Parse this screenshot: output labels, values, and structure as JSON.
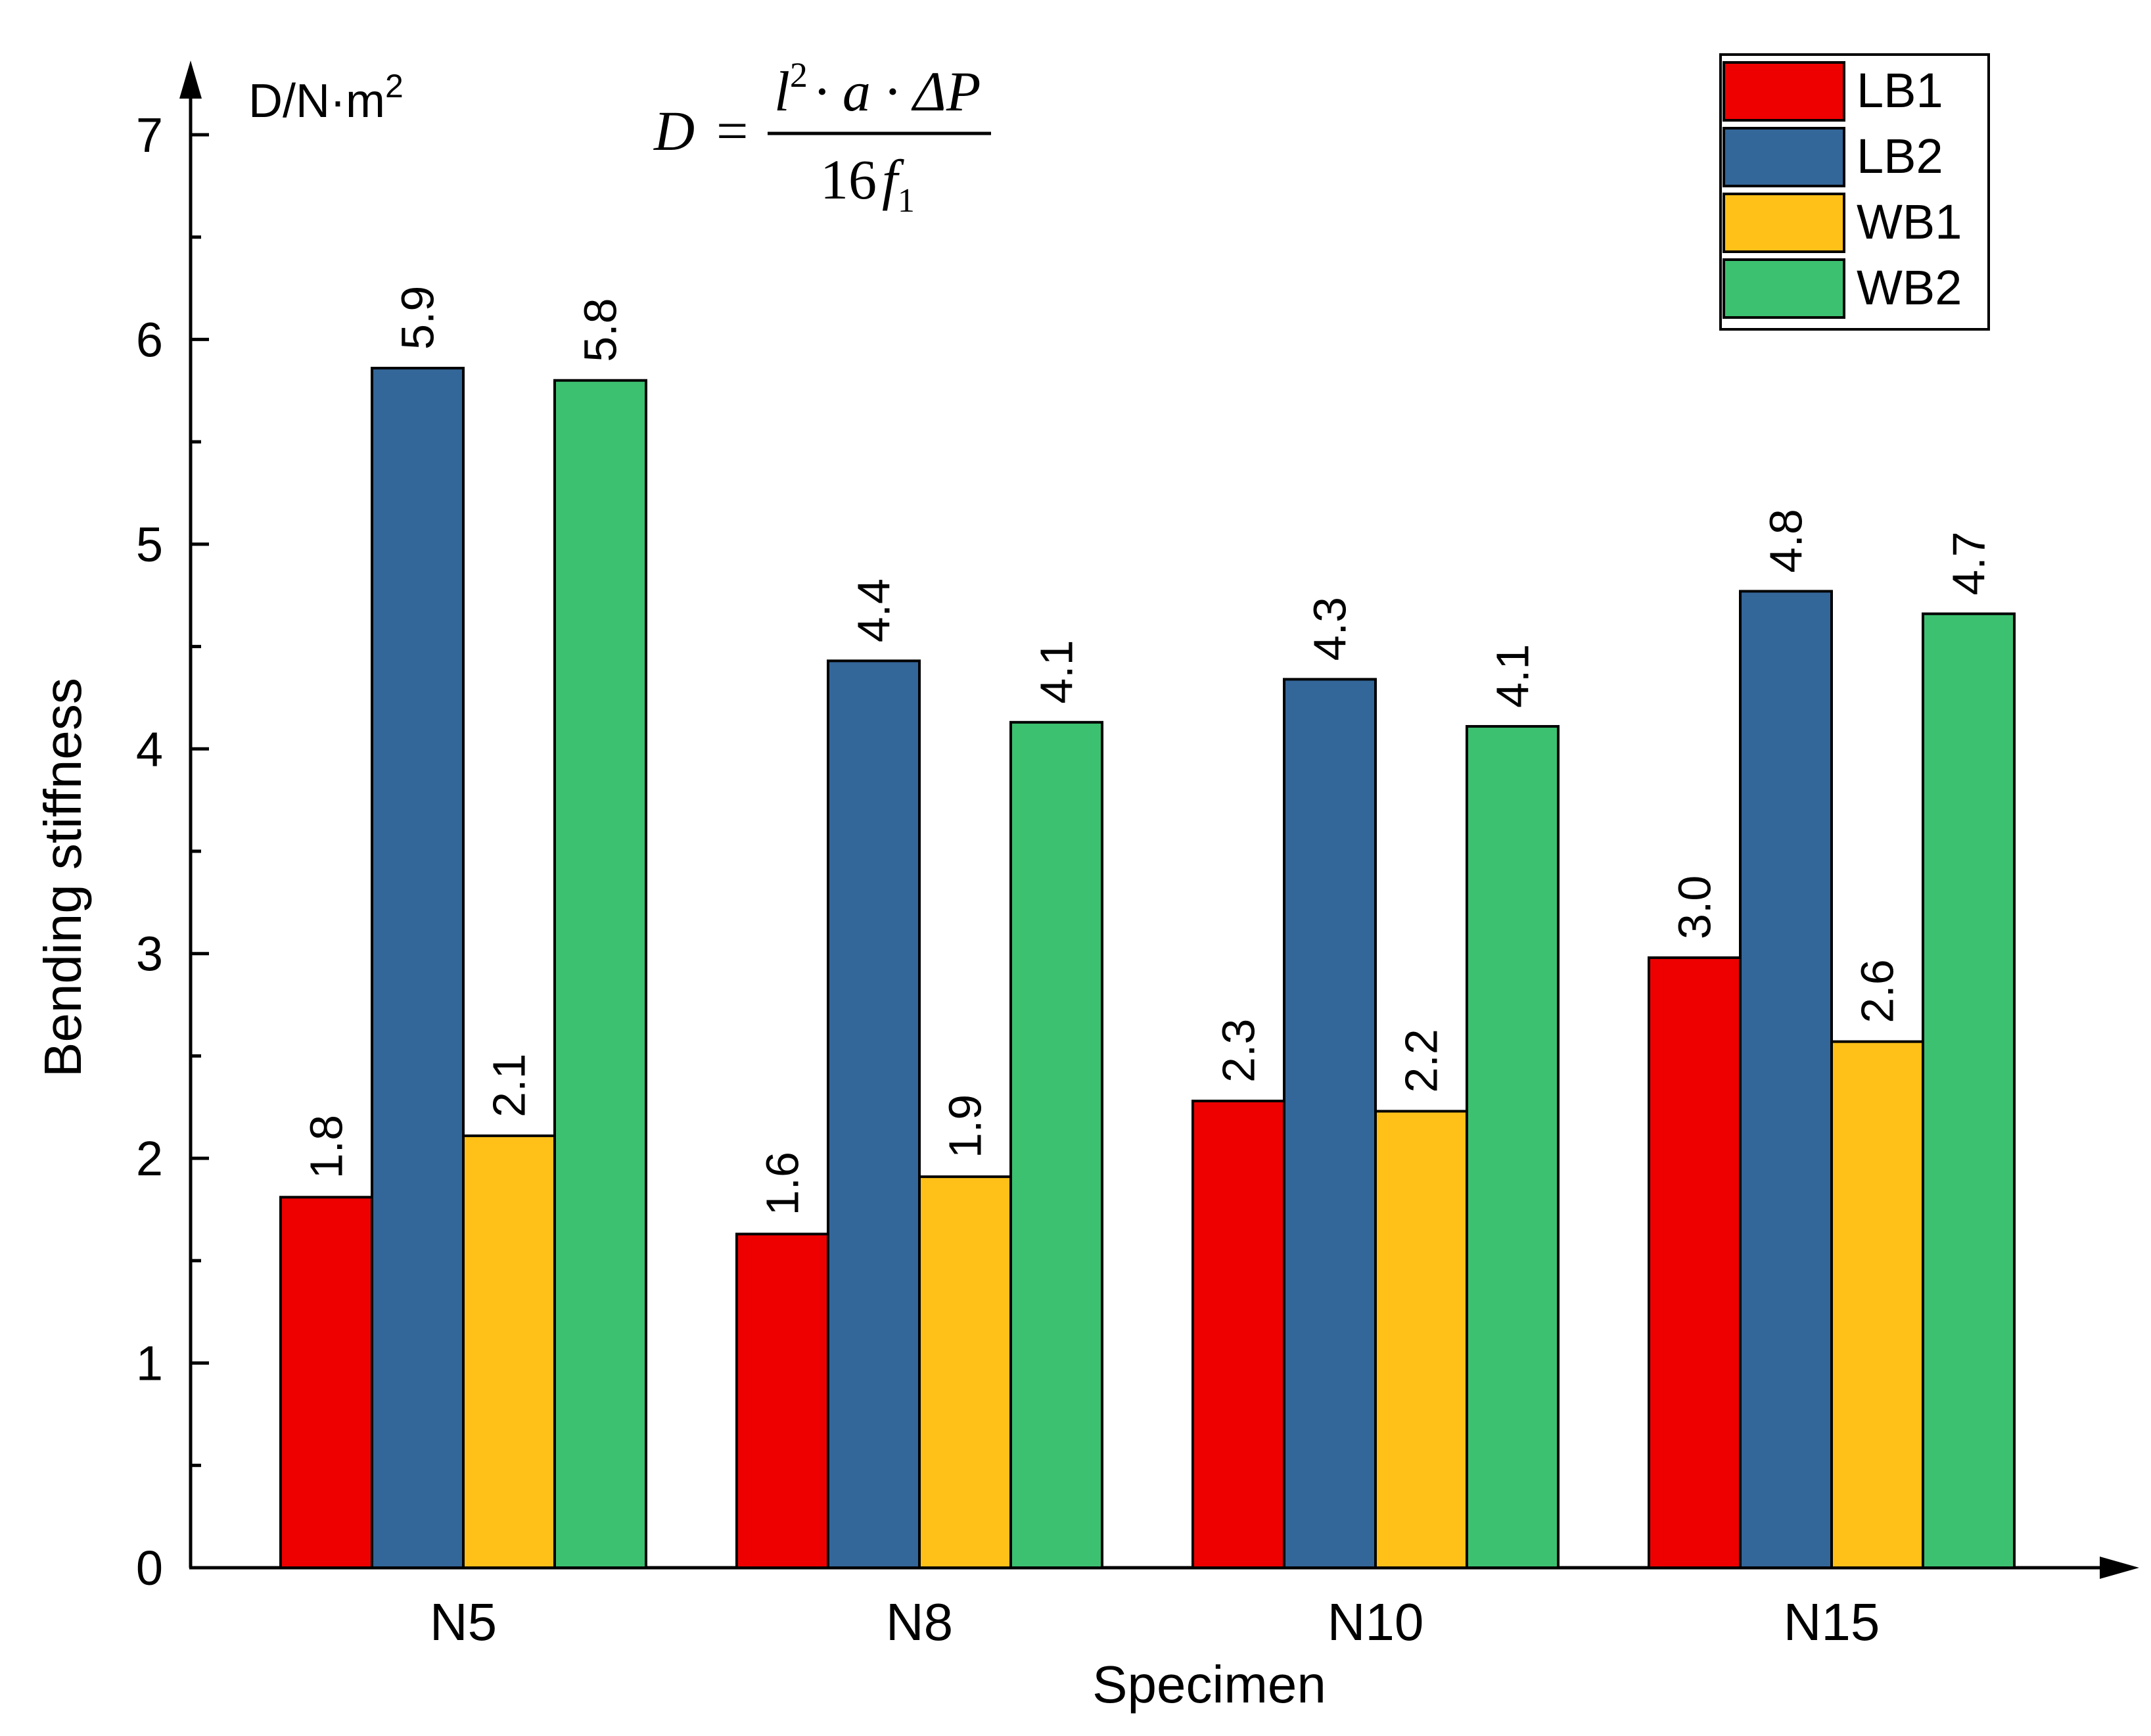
{
  "chart_data": {
    "type": "bar",
    "title": "",
    "xlabel": "Specimen",
    "ylabel": "Bending stiffness",
    "unit_label": "D/N·m",
    "unit_exponent": "2",
    "formula": {
      "lhs": "D",
      "equals": "=",
      "numerator_l": "l",
      "numerator_l_exp": "2",
      "numerator_rest": "· a · ΔP",
      "denominator": "16",
      "denominator_f": "f",
      "denominator_sub": "1"
    },
    "categories": [
      "N5",
      "N8",
      "N10",
      "N15"
    ],
    "ylim": [
      0,
      7
    ],
    "yticks": [
      "0",
      "1",
      "2",
      "3",
      "4",
      "5",
      "6",
      "7"
    ],
    "grid": false,
    "legend_position": "top-right",
    "series": [
      {
        "name": "LB1",
        "color": "#ee0000",
        "values": [
          1.81,
          1.63,
          2.28,
          2.98
        ],
        "labels": [
          "1.8",
          "1.6",
          "2.3",
          "3.0"
        ]
      },
      {
        "name": "LB2",
        "color": "#336699",
        "values": [
          5.86,
          4.43,
          4.34,
          4.77
        ],
        "labels": [
          "5.9",
          "4.4",
          "4.3",
          "4.8"
        ]
      },
      {
        "name": "WB1",
        "color": "#ffc118",
        "values": [
          2.11,
          1.91,
          2.23,
          2.57
        ],
        "labels": [
          "2.1",
          "1.9",
          "2.2",
          "2.6"
        ]
      },
      {
        "name": "WB2",
        "color": "#3cc170",
        "values": [
          5.8,
          4.13,
          4.11,
          4.66
        ],
        "labels": [
          "5.8",
          "4.1",
          "4.1",
          "4.7"
        ]
      }
    ]
  }
}
